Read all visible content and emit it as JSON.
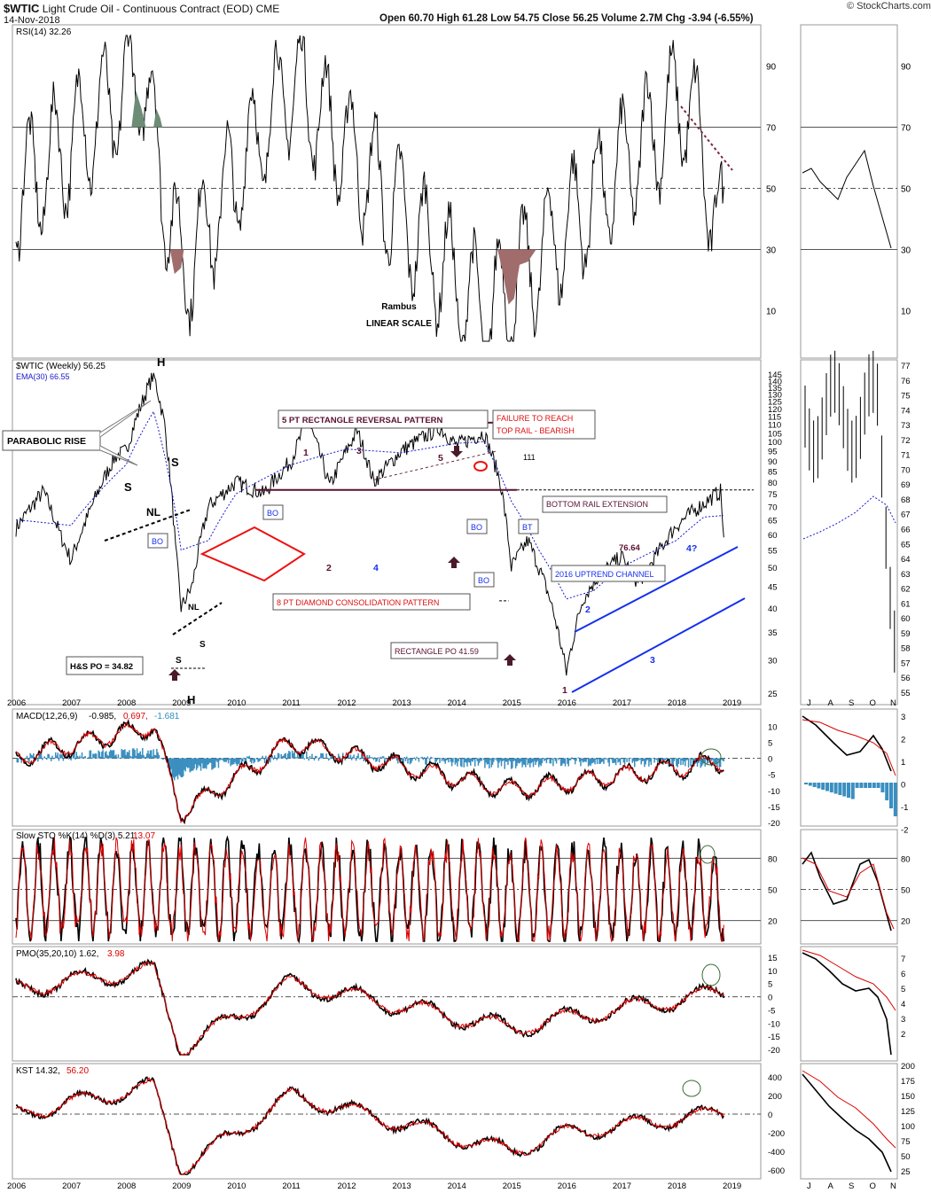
{
  "header": {
    "symbol": "$WTIC",
    "description": "Light Crude Oil - Continuous Contract (EOD)",
    "exchange": "CME",
    "date": "14-Nov-2018",
    "ohlc": "Open 60.70  High 61.28  Low 54.75  Close 56.25  Volume 2.7M  Chg -3.94 (-6.55%)",
    "brand": "© StockCharts.com"
  },
  "colors": {
    "price": "#000000",
    "ema": "#1a1acc",
    "signal": "#dd0000",
    "rect": "#5a1030",
    "channel": "#1530ee",
    "diamond": "#ee1111",
    "hist": "#3a8fc0",
    "ob_fill": "#6d8c76",
    "os_fill": "#a06c6c",
    "arrow": "#4a1a2a"
  },
  "rsi": {
    "label": "RSI(14) 32.26",
    "ticks": [
      "90",
      "70",
      "50",
      "30",
      "10"
    ],
    "inset_ticks": [
      "90",
      "70",
      "50",
      "30",
      "10"
    ],
    "note1": "Rambus",
    "note2": "LINEAR SCALE"
  },
  "price": {
    "label": "$WTIC (Weekly) 56.25",
    "ema_label": "EMA(30) 66.55",
    "ticks": [
      "145",
      "140",
      "135",
      "130",
      "125",
      "120",
      "115",
      "110",
      "105",
      "100",
      "95",
      "90",
      "85",
      "80",
      "75",
      "70",
      "65",
      "60",
      "55",
      "50",
      "45",
      "40",
      "35",
      "30",
      "25"
    ],
    "inset_ticks": [
      "77",
      "76",
      "75",
      "74",
      "73",
      "72",
      "71",
      "70",
      "69",
      "68",
      "67",
      "66",
      "65",
      "64",
      "63",
      "62",
      "61",
      "60",
      "59",
      "58",
      "57",
      "56",
      "55"
    ],
    "years": [
      "2006",
      "2007",
      "2008",
      "2009",
      "2010",
      "2011",
      "2012",
      "2013",
      "2014",
      "2015",
      "2016",
      "2017",
      "2018",
      "2019"
    ],
    "months": [
      "J",
      "A",
      "S",
      "O",
      "N"
    ],
    "annotations": {
      "parabolic": "PARABOLIC RISE",
      "rect_title": "5 PT RECTANGLE  REVERSAL PATTERN",
      "failure1": "FAILURE TO REACH",
      "failure2": "TOP RAIL - BEARISH",
      "bottom_rail": "BOTTOM RAIL EXTENSION",
      "uptrend": "2016 UPTREND CHANNEL",
      "diamond": "8 PT DIAMOND CONSOLIDATION PATTERN",
      "rect_po": "RECTANGLE PO 41.59",
      "hs_po": "H&S  PO = 34.82",
      "val7664": "76.64",
      "val111": "111",
      "bo": "BO",
      "bt": "BT",
      "nl": "NL",
      "s": "S",
      "h": "H",
      "p1": "1",
      "p2": "2",
      "p3": "3",
      "p4": "4",
      "p5": "5",
      "p4q": "4?"
    }
  },
  "macd": {
    "name": "MACD(12,26,9)",
    "v1": "-0.985,",
    "v2": "0.697,",
    "v3": "-1.681",
    "ticks": [
      "10",
      "5",
      "0",
      "-5",
      "-10",
      "-15",
      "-20"
    ],
    "inset_ticks": [
      "3",
      "2",
      "1",
      "0",
      "-1",
      "-2"
    ]
  },
  "sto": {
    "name": "Slow STO %K(14) %D(3) 5.21,",
    "v2": "13.07",
    "ticks": [
      "80",
      "50",
      "20"
    ],
    "inset_ticks": [
      "80",
      "50",
      "20"
    ]
  },
  "pmo": {
    "name": "PMO(35,20,10) 1.62,",
    "v2": "3.98",
    "ticks": [
      "15",
      "10",
      "5",
      "0",
      "-5",
      "-10",
      "-15",
      "-20"
    ],
    "inset_ticks": [
      "7",
      "6",
      "5",
      "4",
      "3",
      "2"
    ]
  },
  "kst": {
    "name": "KST 14.32,",
    "v2": "56.20",
    "ticks": [
      "400",
      "200",
      "0",
      "-200",
      "-400",
      "-600"
    ],
    "inset_ticks": [
      "200",
      "175",
      "150",
      "125",
      "100",
      "75",
      "50",
      "25"
    ]
  },
  "chart_data": [
    {
      "type": "line",
      "title": "$WTIC (Weekly) 56.25",
      "series": [
        {
          "name": "$WTIC",
          "x": [
            2006.0,
            2006.5,
            2006.8,
            2007.0,
            2007.3,
            2007.8,
            2008.0,
            2008.5,
            2008.7,
            2008.9,
            2009.0,
            2009.2,
            2009.5,
            2010.0,
            2010.5,
            2011.0,
            2011.3,
            2011.7,
            2012.2,
            2012.5,
            2013.0,
            2013.7,
            2014.0,
            2014.5,
            2014.8,
            2015.0,
            2015.3,
            2015.7,
            2016.0,
            2016.3,
            2016.6,
            2017.0,
            2017.3,
            2017.5,
            2018.0,
            2018.3,
            2018.8,
            2018.87
          ],
          "y": [
            62,
            76,
            60,
            52,
            66,
            92,
            95,
            145,
            110,
            55,
            40,
            45,
            70,
            80,
            75,
            90,
            112,
            78,
            106,
            80,
            95,
            108,
            98,
            105,
            80,
            50,
            58,
            42,
            28,
            42,
            48,
            53,
            46,
            50,
            63,
            68,
            76,
            56
          ]
        },
        {
          "name": "EMA(30)",
          "x": [
            2006.0,
            2007.0,
            2008.0,
            2008.5,
            2009.0,
            2009.5,
            2010.0,
            2011.0,
            2012.0,
            2013.0,
            2014.0,
            2014.5,
            2015.0,
            2015.5,
            2016.0,
            2016.5,
            2017.0,
            2018.0,
            2018.5,
            2018.87
          ],
          "y": [
            65,
            63,
            88,
            118,
            55,
            58,
            75,
            88,
            96,
            94,
            99,
            100,
            72,
            55,
            42,
            44,
            50,
            58,
            66,
            66.55
          ]
        }
      ],
      "ylim": [
        25,
        150
      ],
      "xlim": [
        2006,
        2019
      ]
    },
    {
      "type": "line",
      "title": "RSI(14) 32.26",
      "ylim": [
        0,
        100
      ],
      "series": [
        {
          "name": "RSI(14)",
          "x": [
            2006,
            2008.3,
            2009.0,
            2011.0,
            2014.5,
            2018.2,
            2018.87
          ],
          "y": [
            48,
            83,
            25,
            82,
            12,
            77,
            32.26
          ]
        }
      ]
    },
    {
      "type": "line",
      "title": "MACD(12,26,9)",
      "ylim": [
        -20,
        12
      ],
      "series": [
        {
          "name": "MACD",
          "x": [
            2006,
            2008.5,
            2009.0,
            2011.0,
            2015.0,
            2018.87
          ],
          "y": [
            0,
            10,
            -17,
            5,
            -10,
            -0.985
          ]
        }
      ]
    },
    {
      "type": "line",
      "title": "Slow STO %K(14) %D(3)",
      "ylim": [
        0,
        100
      ],
      "series": [
        {
          "name": "%K",
          "x": [
            2018.87
          ],
          "y": [
            5.21
          ]
        },
        {
          "name": "%D",
          "x": [
            2018.87
          ],
          "y": [
            13.07
          ]
        }
      ]
    },
    {
      "type": "line",
      "title": "PMO(35,20,10)",
      "ylim": [
        -22,
        15
      ],
      "series": [
        {
          "name": "PMO",
          "x": [
            2006,
            2008.5,
            2009.0,
            2011.0,
            2015.0,
            2016.0,
            2018.87
          ],
          "y": [
            3,
            10,
            -20,
            5,
            -12,
            -8,
            1.62
          ]
        }
      ]
    },
    {
      "type": "line",
      "title": "KST",
      "ylim": [
        -650,
        450
      ],
      "series": [
        {
          "name": "KST",
          "x": [
            2006,
            2008.5,
            2009.0,
            2011.0,
            2015.0,
            2016.0,
            2018.87
          ],
          "y": [
            0,
            300,
            -600,
            200,
            -400,
            -200,
            14.32
          ]
        }
      ]
    }
  ]
}
